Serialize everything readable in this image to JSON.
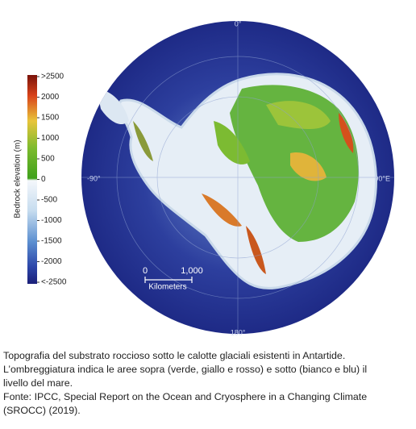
{
  "map": {
    "graticule_labels": [
      "0°",
      "-90°",
      "90°E",
      "180°"
    ],
    "colorbar": {
      "title": "Bedrock elevation (m)",
      "lim": [
        -2500,
        2500
      ],
      "ticks": [
        {
          "value": 2500,
          "label": ">2500"
        },
        2000,
        1500,
        1000,
        500,
        0,
        -500,
        -1000,
        -1500,
        -2000,
        {
          "value": -2500,
          "label": "<-2500"
        }
      ]
    },
    "scale_bar": {
      "ticks": [
        {
          "value": 0,
          "label": "0"
        },
        {
          "value": 1000,
          "label": "1,000"
        }
      ],
      "unit": "Kilometers"
    }
  },
  "caption": {
    "lines": [
      "Topografia del substrato roccioso sotto le calotte glaciali esistenti in Antartide.",
      "L’ombreggiatura indica le aree sopra (verde, giallo e rosso) e sotto (bianco e blu) il",
      "livello del mare.",
      "Fonte: IPCC, Special Report on the Ocean and Cryosphere in a Changing Climate",
      "(SROCC) (2019)."
    ]
  }
}
